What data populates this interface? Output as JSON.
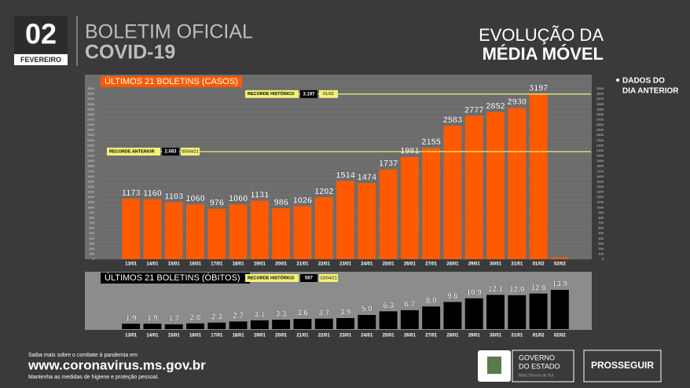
{
  "header": {
    "day": "02",
    "month": "FEVEREIRO",
    "title": "BOLETIM OFICIAL",
    "subtitle": "COVID-19",
    "right_title": "EVOLUÇÃO DA",
    "right_subtitle": "MÉDIA MÓVEL",
    "note": [
      "DADOS DO",
      "DIA ANTERIOR"
    ]
  },
  "footer": {
    "line1": "Saiba mais sobre o combate à pandemia em",
    "url": "www.coronavirus.ms.gov.br",
    "line2": "Mantenha as medidas de higiene e proteção pessoal.",
    "gov": [
      "GOVERNO",
      "DO ESTADO",
      "Mato Grosso do Sul"
    ],
    "program": "PROSSEGUIR"
  },
  "chart_data": [
    {
      "type": "bar",
      "title": "ÚLTIMOS 21 BOLETINS (CASOS)",
      "color": "#ff5a00",
      "categories": [
        "13/01",
        "14/01",
        "15/01",
        "16/01",
        "17/01",
        "18/01",
        "19/01",
        "20/01",
        "21/01",
        "22/01",
        "23/01",
        "24/01",
        "25/01",
        "26/01",
        "27/01",
        "28/01",
        "29/01",
        "30/01",
        "31/01",
        "01/02",
        "02/02"
      ],
      "values": [
        1173,
        1160,
        1103,
        1060,
        976,
        1060,
        1131,
        986,
        1026,
        1202,
        1514,
        1474,
        1737,
        1981,
        2155,
        2583,
        2777,
        2852,
        2930,
        3197,
        30
      ],
      "value_labels": [
        "1173",
        "1160",
        "1103",
        "1060",
        "976",
        "1060",
        "1131",
        "986",
        "1026",
        "1202",
        "1514",
        "1474",
        "1737",
        "1981",
        "2155",
        "2583",
        "2777",
        "2852",
        "2930",
        "3197",
        null
      ],
      "ylim": [
        0,
        3300
      ],
      "yticks": [
        0,
        100,
        200,
        300,
        400,
        500,
        600,
        700,
        800,
        900,
        1000,
        1100,
        1200,
        1300,
        1400,
        1500,
        1600,
        1700,
        1800,
        1900,
        2000,
        2100,
        2200,
        2300,
        2400,
        2500,
        2600,
        2700,
        2800,
        2900,
        3000,
        3100,
        3200,
        3300
      ],
      "grid": true,
      "annotations": [
        {
          "label": "RECORDE HISTÓRICO",
          "value": 3197,
          "value_label": "3.197",
          "date": "01/02"
        },
        {
          "label": "RECORDE ANTERIOR",
          "value": 2083,
          "value_label": "2.083",
          "date": "05/04/21"
        }
      ]
    },
    {
      "type": "bar",
      "title": "ÚLTIMOS 21 BOLETINS (ÓBITOS)",
      "color": "#000000",
      "categories": [
        "13/01",
        "14/01",
        "15/01",
        "16/01",
        "17/01",
        "18/01",
        "19/01",
        "20/01",
        "21/01",
        "22/01",
        "23/01",
        "24/01",
        "25/01",
        "26/01",
        "27/01",
        "28/01",
        "29/01",
        "30/01",
        "31/01",
        "01/02",
        "02/02"
      ],
      "values": [
        1.9,
        1.9,
        1.7,
        2.0,
        2.3,
        2.7,
        3.1,
        3.3,
        3.6,
        3.7,
        3.9,
        5.0,
        6.3,
        6.7,
        8.0,
        9.6,
        10.9,
        12.1,
        12.0,
        12.6,
        13.9
      ],
      "value_labels": [
        "1,9",
        "1,9",
        "1,7",
        "2,0",
        "2,3",
        "2,7",
        "3,1",
        "3,3",
        "3,6",
        "3,7",
        "3,9",
        "5,0",
        "6,3",
        "6,7",
        "8,0",
        "9,6",
        "10,9",
        "12,1",
        "12,0",
        "12,6",
        "13,9"
      ],
      "ylim": [
        0,
        16
      ],
      "annotations": [
        {
          "label": "RECORDE HISTÓRICO",
          "value": 567,
          "date": "10/04/21"
        }
      ]
    }
  ]
}
